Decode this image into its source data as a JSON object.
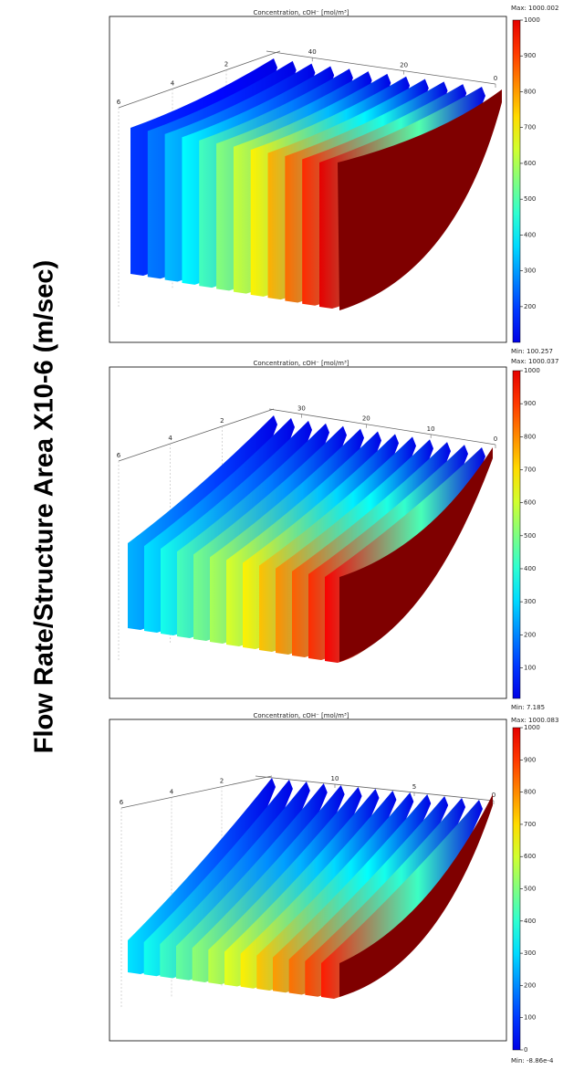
{
  "ylabel": "Flow Rate/Structure Area X10-6 (m/sec)",
  "chart_data": [
    {
      "type": "slice3d",
      "title": "Concentration, cOH⁻ [mol/m³]",
      "max_label": "Max: 1000.002",
      "min_label": "Min: 100.257",
      "clim": [
        100.257,
        1000.002
      ],
      "cticks": [
        200,
        300,
        400,
        500,
        600,
        700,
        800,
        900,
        1000
      ],
      "xlim": [
        0,
        6
      ],
      "xticks": [
        2,
        4,
        6
      ],
      "ylim": [
        0,
        50
      ],
      "yticks": [
        0,
        20,
        40
      ]
    },
    {
      "type": "slice3d",
      "title": "Concentration, cOH⁻ [mol/m³]",
      "max_label": "Max: 1000.037",
      "min_label": "Min: 7.185",
      "clim": [
        7.185,
        1000.037
      ],
      "cticks": [
        100,
        200,
        300,
        400,
        500,
        600,
        700,
        800,
        900,
        1000
      ],
      "xlim": [
        0,
        6
      ],
      "xticks": [
        2,
        4,
        6
      ],
      "ylim": [
        0,
        35
      ],
      "yticks": [
        0,
        10,
        20,
        30
      ]
    },
    {
      "type": "slice3d",
      "title": "Concentration, cOH⁻ [mol/m³]",
      "max_label": "Max: 1000.083",
      "min_label": "Min: -8.86e-4",
      "clim": [
        -0.000886,
        1000.083
      ],
      "cticks": [
        0,
        100,
        200,
        300,
        400,
        500,
        600,
        700,
        800,
        900,
        1000
      ],
      "xlim": [
        0,
        6
      ],
      "xticks": [
        2,
        4,
        6
      ],
      "ylim": [
        0,
        15
      ],
      "yticks": [
        0,
        5,
        10
      ]
    }
  ]
}
